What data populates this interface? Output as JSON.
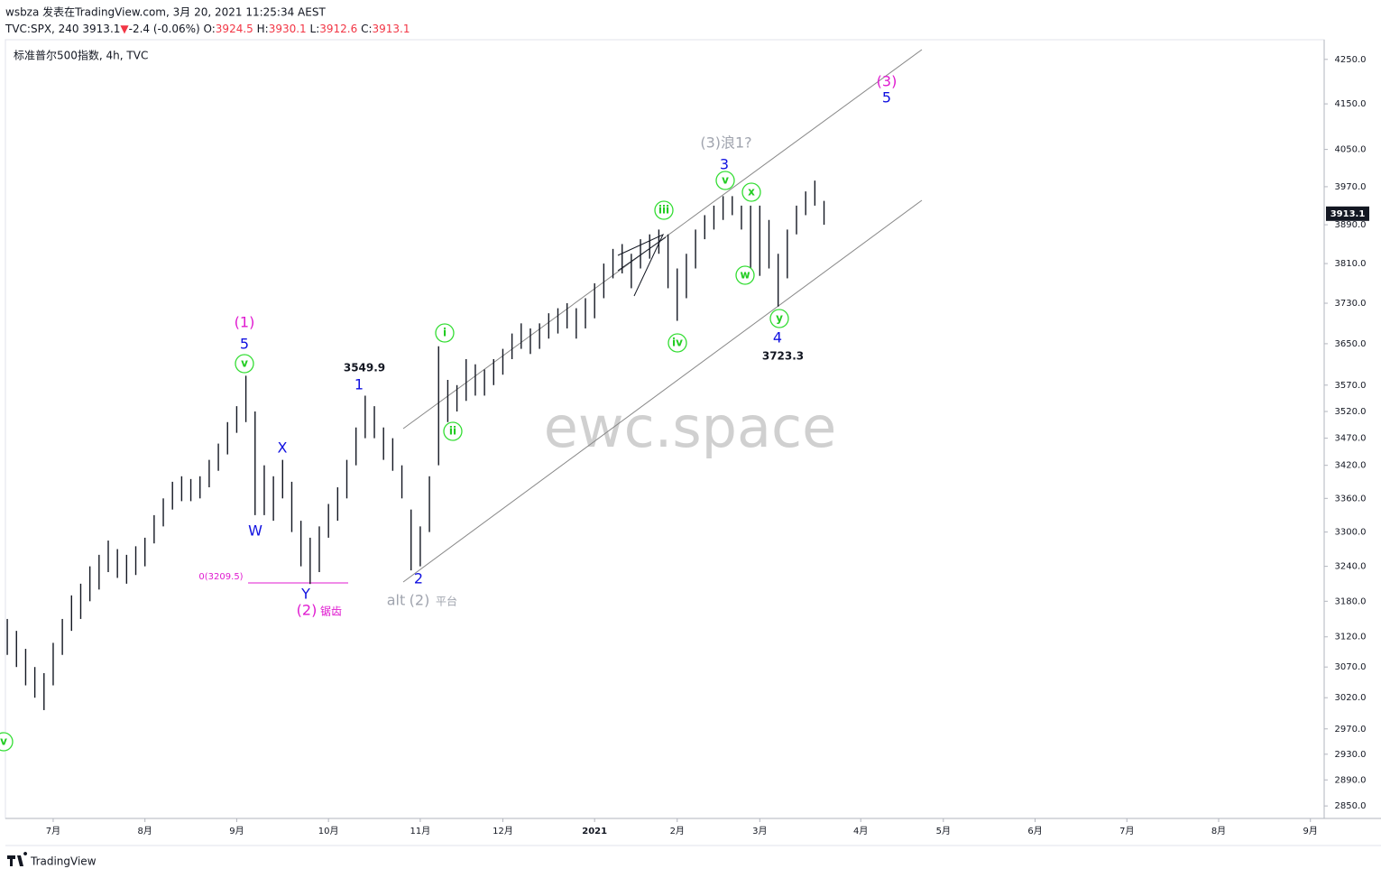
{
  "header": {
    "author_line": "wsbza 发表在TradingView.com, 3月 20, 2021 11:25:34 AEST",
    "symbol": "TVC:SPX, 240",
    "price": 3913.1,
    "arrow": "▼",
    "change": "-2.4 (-0.06%)",
    "ohlc": [
      {
        "key": "O:",
        "value": 3924.5
      },
      {
        "key": "H:",
        "value": 3930.1
      },
      {
        "key": "L:",
        "value": 3912.6
      },
      {
        "key": "C:",
        "value": 3913.1
      }
    ],
    "instrument": "标准普尔500指数, 4h, TVC"
  },
  "chart_data": {
    "type": "ohlc",
    "log": true,
    "grid": false,
    "color": "#131722",
    "ylim": [
      2831,
      4295
    ],
    "yticks": [
      {
        "value": 4250,
        "label": "4250.0"
      },
      {
        "value": 4150,
        "label": "4150.0"
      },
      {
        "value": 4050,
        "label": "4050.0"
      },
      {
        "value": 3970,
        "label": "3970.0"
      },
      {
        "value": 3890,
        "label": "3890.0"
      },
      {
        "value": 3810,
        "label": "3810.0"
      },
      {
        "value": 3730,
        "label": "3730.0"
      },
      {
        "value": 3650,
        "label": "3650.0"
      },
      {
        "value": 3570,
        "label": "3570.0"
      },
      {
        "value": 3520,
        "label": "3520.0"
      },
      {
        "value": 3470,
        "label": "3470.0"
      },
      {
        "value": 3420,
        "label": "3420.0"
      },
      {
        "value": 3360,
        "label": "3360.0"
      },
      {
        "value": 3300,
        "label": "3300.0"
      },
      {
        "value": 3240,
        "label": "3240.0"
      },
      {
        "value": 3180,
        "label": "3180.0"
      },
      {
        "value": 3120,
        "label": "3120.0"
      },
      {
        "value": 3070,
        "label": "3070.0"
      },
      {
        "value": 3020,
        "label": "3020.0"
      },
      {
        "value": 2970,
        "label": "2970.0"
      },
      {
        "value": 2930,
        "label": "2930.0"
      },
      {
        "value": 2890,
        "label": "2890.0"
      },
      {
        "value": 2850,
        "label": "2850.0"
      }
    ],
    "last_price": 3913.1,
    "categories": [
      null,
      null,
      null,
      null,
      null,
      "7月",
      null,
      null,
      null,
      null,
      null,
      null,
      null,
      null,
      null,
      "8月",
      null,
      null,
      null,
      null,
      null,
      null,
      null,
      null,
      null,
      "9月",
      null,
      null,
      null,
      null,
      null,
      null,
      null,
      null,
      null,
      "10月",
      null,
      null,
      null,
      null,
      null,
      null,
      null,
      null,
      null,
      "11月",
      null,
      null,
      null,
      null,
      null,
      null,
      null,
      null,
      "12月",
      null,
      null,
      null,
      null,
      null,
      null,
      null,
      null,
      null,
      "2021",
      null,
      null,
      null,
      null,
      null,
      null,
      null,
      null,
      "2月",
      null,
      null,
      null,
      null,
      null,
      null,
      null,
      null,
      "3月",
      null,
      null,
      null,
      null,
      null,
      null,
      null,
      null,
      null,
      null,
      "4月",
      null,
      null,
      null,
      null,
      null,
      null,
      null,
      null,
      "5月",
      null,
      null,
      null,
      null,
      null,
      null,
      null,
      null,
      null,
      "6月",
      null,
      null,
      null,
      null,
      null,
      null,
      null,
      null,
      null,
      "7月",
      null,
      null,
      null,
      null,
      null,
      null,
      null,
      null,
      null,
      "8月",
      null,
      null,
      null,
      null,
      null,
      null,
      null,
      null,
      null,
      "9月",
      null
    ],
    "high": [
      3150,
      3130,
      3100,
      3070,
      3060,
      3110,
      3150,
      3190,
      3210,
      3240,
      3260,
      3285,
      3270,
      3260,
      3275,
      3290,
      3330,
      3360,
      3390,
      3400,
      3395,
      3400,
      3430,
      3460,
      3500,
      3530,
      3588,
      3520,
      3420,
      3400,
      3430,
      3390,
      3320,
      3290,
      3310,
      3350,
      3380,
      3430,
      3490,
      3549.9,
      3530,
      3490,
      3470,
      3420,
      3340,
      3310,
      3400,
      3645,
      3580,
      3570,
      3620,
      3610,
      3600,
      3620,
      3640,
      3670,
      3690,
      3680,
      3690,
      3710,
      3720,
      3730,
      3720,
      3740,
      3770,
      3810,
      3840,
      3850,
      3830,
      3860,
      3870,
      3880,
      3870,
      3800,
      3830,
      3880,
      3910,
      3930,
      3950,
      3950,
      3930,
      3930,
      3930,
      3900,
      3830,
      3880,
      3930,
      3960,
      3983,
      3940,
      null,
      null,
      null,
      null,
      null,
      null,
      null,
      null,
      null,
      null,
      null,
      null,
      null,
      null,
      null,
      null,
      null,
      null,
      null,
      null,
      null,
      null,
      null,
      null,
      null,
      null,
      null,
      null,
      null,
      null,
      null,
      null,
      null,
      null,
      null,
      null,
      null,
      null,
      null,
      null,
      null,
      null,
      null,
      null,
      null,
      null,
      null,
      null,
      null,
      null,
      null,
      null,
      null,
      null
    ],
    "low": [
      3090,
      3070,
      3040,
      3020,
      3000,
      3040,
      3090,
      3130,
      3150,
      3180,
      3200,
      3230,
      3220,
      3210,
      3225,
      3240,
      3280,
      3310,
      3340,
      3355,
      3355,
      3360,
      3380,
      3410,
      3440,
      3480,
      3500,
      3330,
      3330,
      3320,
      3360,
      3300,
      3240,
      3209.5,
      3230,
      3290,
      3320,
      3360,
      3420,
      3470,
      3470,
      3430,
      3410,
      3360,
      3233,
      3240,
      3300,
      3420,
      3500,
      3520,
      3540,
      3550,
      3550,
      3570,
      3590,
      3620,
      3640,
      3630,
      3640,
      3660,
      3670,
      3680,
      3660,
      3680,
      3700,
      3740,
      3780,
      3790,
      3760,
      3800,
      3820,
      3830,
      3760,
      3695,
      3740,
      3800,
      3860,
      3880,
      3900,
      3910,
      3880,
      3800,
      3785,
      3800,
      3723.3,
      3780,
      3870,
      3910,
      3930,
      3890,
      null,
      null,
      null,
      null,
      null,
      null,
      null,
      null,
      null,
      null,
      null,
      null,
      null,
      null,
      null,
      null,
      null,
      null,
      null,
      null,
      null,
      null,
      null,
      null,
      null,
      null,
      null,
      null,
      null,
      null,
      null,
      null,
      null,
      null,
      null,
      null,
      null,
      null,
      null,
      null,
      null,
      null,
      null,
      null,
      null,
      null,
      null,
      null,
      null,
      null,
      null,
      null,
      null,
      null
    ],
    "annotations": [
      "(1)",
      "5",
      "v",
      "X",
      "W",
      "0(3209.5)",
      "Y",
      "(2)",
      "锯齿",
      "3549.9",
      "1",
      "i",
      "ii",
      "2",
      "alt",
      "(2)",
      "平台",
      "iii",
      "iv",
      "(3)浪1?",
      "3",
      "v",
      "x",
      "w",
      "y",
      "4",
      "3723.3",
      "(3)",
      "5",
      "v"
    ],
    "watermark": "ewc.space"
  },
  "footer": "TradingView"
}
